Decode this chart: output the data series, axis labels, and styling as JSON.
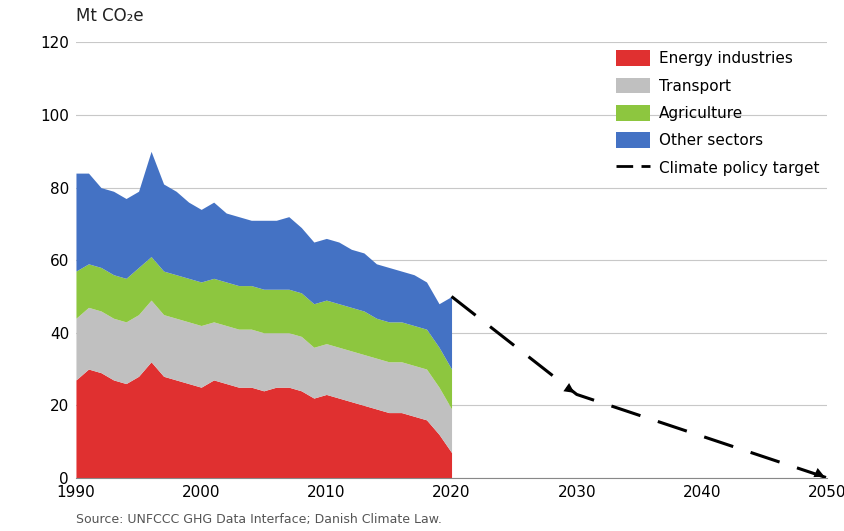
{
  "title": "",
  "ylabel": "Mt CO₂e",
  "source": "Source: UNFCCC GHG Data Interface; Danish Climate Law.",
  "xlim": [
    1990,
    2050
  ],
  "ylim": [
    0,
    120
  ],
  "yticks": [
    0,
    20,
    40,
    60,
    80,
    100,
    120
  ],
  "xticks": [
    1990,
    2000,
    2010,
    2020,
    2030,
    2040,
    2050
  ],
  "years": [
    1990,
    1991,
    1992,
    1993,
    1994,
    1995,
    1996,
    1997,
    1998,
    1999,
    2000,
    2001,
    2002,
    2003,
    2004,
    2005,
    2006,
    2007,
    2008,
    2009,
    2010,
    2011,
    2012,
    2013,
    2014,
    2015,
    2016,
    2017,
    2018,
    2019,
    2020
  ],
  "energy": [
    27,
    30,
    29,
    27,
    26,
    28,
    32,
    28,
    27,
    26,
    25,
    27,
    26,
    25,
    25,
    24,
    25,
    25,
    24,
    22,
    23,
    22,
    21,
    20,
    19,
    18,
    18,
    17,
    16,
    12,
    7
  ],
  "transport": [
    17,
    17,
    17,
    17,
    17,
    17,
    17,
    17,
    17,
    17,
    17,
    16,
    16,
    16,
    16,
    16,
    15,
    15,
    15,
    14,
    14,
    14,
    14,
    14,
    14,
    14,
    14,
    14,
    14,
    13,
    12
  ],
  "agriculture": [
    13,
    12,
    12,
    12,
    12,
    13,
    12,
    12,
    12,
    12,
    12,
    12,
    12,
    12,
    12,
    12,
    12,
    12,
    12,
    12,
    12,
    12,
    12,
    12,
    11,
    11,
    11,
    11,
    11,
    11,
    11
  ],
  "other": [
    27,
    25,
    22,
    23,
    22,
    21,
    29,
    24,
    23,
    21,
    20,
    21,
    19,
    19,
    18,
    19,
    19,
    20,
    18,
    17,
    17,
    17,
    16,
    16,
    15,
    15,
    14,
    14,
    13,
    12,
    20
  ],
  "policy_years": [
    2020,
    2030,
    2050
  ],
  "policy_values": [
    50,
    23,
    0
  ],
  "energy_color": "#e03030",
  "transport_color": "#c0c0c0",
  "agriculture_color": "#8dc63f",
  "other_color": "#4472c4",
  "policy_color": "#000000",
  "background_color": "#ffffff",
  "grid_color": "#c8c8c8",
  "legend_labels": [
    "Energy industries",
    "Transport",
    "Agriculture",
    "Other sectors",
    "Climate policy target"
  ],
  "ylabel_fontsize": 12,
  "tick_fontsize": 11,
  "legend_fontsize": 11,
  "source_fontsize": 9
}
